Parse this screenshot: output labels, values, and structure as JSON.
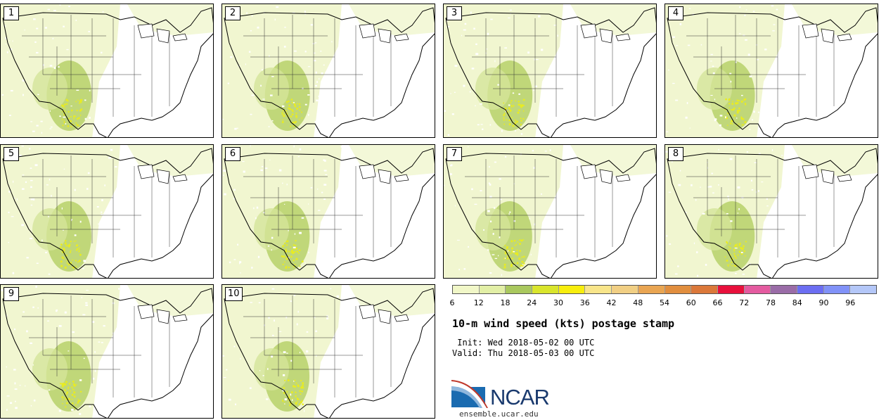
{
  "panels": [
    {
      "label": "1"
    },
    {
      "label": "2"
    },
    {
      "label": "3"
    },
    {
      "label": "4"
    },
    {
      "label": "5"
    },
    {
      "label": "6"
    },
    {
      "label": "7"
    },
    {
      "label": "8"
    },
    {
      "label": "9"
    },
    {
      "label": "10"
    }
  ],
  "colorbar": {
    "colors": [
      "#f1f7c8",
      "#e2efa6",
      "#a9c85e",
      "#d9e52c",
      "#f7ee0d",
      "#f8e58a",
      "#f1cf84",
      "#e9a552",
      "#e18e3e",
      "#db783a",
      "#e8103c",
      "#e45ba0",
      "#9a6ca7",
      "#6c6ef2",
      "#8192f8",
      "#b4c7f8"
    ],
    "ticks": [
      "6",
      "12",
      "18",
      "24",
      "30",
      "36",
      "42",
      "48",
      "54",
      "60",
      "66",
      "72",
      "78",
      "84",
      "90",
      "96"
    ]
  },
  "title": "10-m wind speed (kts) postage stamp",
  "init_text": " Init: Wed 2018-05-02 00 UTC",
  "valid_text": "Valid: Thu 2018-05-03 00 UTC",
  "logo_text": "NCAR",
  "website": "ensemble.ucar.edu"
}
